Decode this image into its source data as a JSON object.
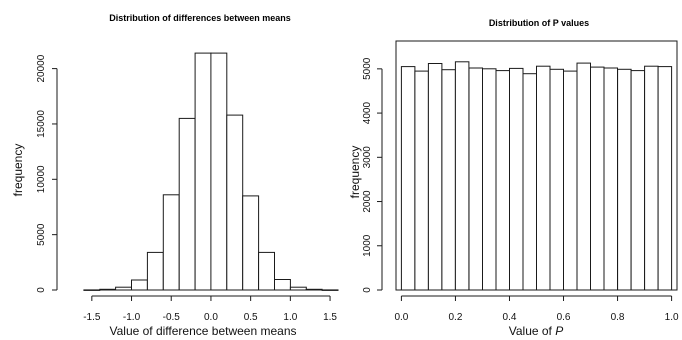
{
  "chart_data": [
    {
      "type": "bar",
      "title": "Distribution of differences between means",
      "xlabel": "Value of difference between means",
      "ylabel": "frequency",
      "bin_edges": [
        -1.6,
        -1.4,
        -1.2,
        -1.0,
        -0.8,
        -0.6,
        -0.4,
        -0.2,
        0.0,
        0.2,
        0.4,
        0.6,
        0.8,
        1.0,
        1.2,
        1.4,
        1.6
      ],
      "values": [
        5,
        60,
        250,
        900,
        3400,
        8600,
        15500,
        21400,
        21400,
        15800,
        8500,
        3400,
        950,
        250,
        60,
        5
      ],
      "xlim": [
        -1.8,
        1.6
      ],
      "ylim": [
        0,
        21500
      ],
      "xticks": [
        -1.5,
        -1.0,
        -0.5,
        0.0,
        0.5,
        1.0,
        1.5
      ],
      "xtick_labels": [
        "-1.5",
        "-1.0",
        "-0.5",
        "0.0",
        "0.5",
        "1.0",
        "1.5"
      ],
      "yticks": [
        0,
        5000,
        10000,
        15000,
        20000
      ],
      "ytick_labels": [
        "0",
        "5000",
        "10000",
        "15000",
        "20000"
      ],
      "frame": false
    },
    {
      "type": "bar",
      "title": "Distribution of P values",
      "xlabel": "Value of ",
      "xlabel_italic": "P",
      "ylabel": "frequency",
      "bin_edges": [
        0.0,
        0.05,
        0.1,
        0.15,
        0.2,
        0.25,
        0.3,
        0.35,
        0.4,
        0.45,
        0.5,
        0.55,
        0.6,
        0.65,
        0.7,
        0.75,
        0.8,
        0.85,
        0.9,
        0.95,
        1.0
      ],
      "values": [
        5050,
        4950,
        5120,
        4980,
        5160,
        5020,
        5000,
        4960,
        5010,
        4890,
        5060,
        4990,
        4950,
        5130,
        5040,
        5020,
        4990,
        4960,
        5060,
        5050
      ],
      "xlim": [
        -0.02,
        1.02
      ],
      "ylim": [
        0,
        5200
      ],
      "xticks": [
        0.0,
        0.2,
        0.4,
        0.6,
        0.8,
        1.0
      ],
      "xtick_labels": [
        "0.0",
        "0.2",
        "0.4",
        "0.6",
        "0.8",
        "1.0"
      ],
      "yticks": [
        0,
        1000,
        2000,
        3000,
        4000,
        5000
      ],
      "ytick_labels": [
        "0",
        "1000",
        "2000",
        "3000",
        "4000",
        "5000"
      ],
      "frame": true
    }
  ]
}
